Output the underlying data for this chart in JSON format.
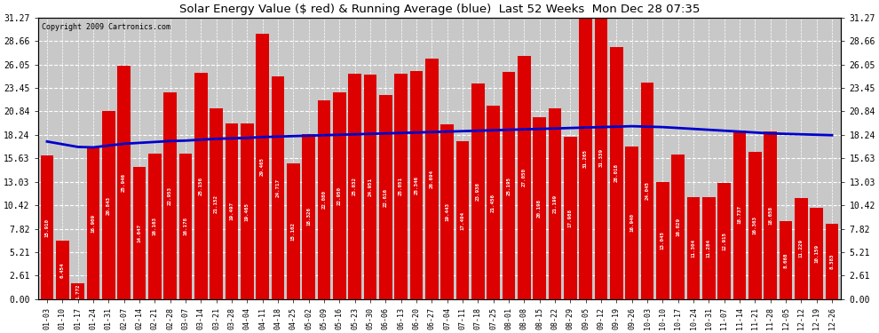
{
  "title": "Solar Energy Value ($ red) & Running Average (blue)  Last 52 Weeks  Mon Dec 28 07:35",
  "copyright": "Copyright 2009 Cartronics.com",
  "bar_color": "#dd0000",
  "line_color": "#0000cc",
  "bg_color": "#ffffff",
  "plot_bg_color": "#c8c8c8",
  "grid_color": "#ffffff",
  "ylim": [
    0,
    31.27
  ],
  "yticks": [
    0.0,
    2.61,
    5.21,
    7.82,
    10.42,
    13.03,
    15.63,
    18.24,
    20.84,
    23.45,
    26.05,
    28.66,
    31.27
  ],
  "categories": [
    "01-03",
    "01-10",
    "01-17",
    "01-24",
    "01-31",
    "02-07",
    "02-14",
    "02-21",
    "02-28",
    "03-07",
    "03-14",
    "03-21",
    "03-28",
    "04-04",
    "04-11",
    "04-18",
    "04-25",
    "05-02",
    "05-09",
    "05-16",
    "05-23",
    "05-30",
    "06-06",
    "06-13",
    "06-20",
    "06-27",
    "07-04",
    "07-11",
    "07-18",
    "07-25",
    "08-01",
    "08-08",
    "08-15",
    "08-22",
    "08-29",
    "09-05",
    "09-12",
    "09-19",
    "09-26",
    "10-03",
    "10-10",
    "10-17",
    "10-24",
    "10-31",
    "11-07",
    "11-14",
    "11-21",
    "11-28",
    "12-05",
    "12-12",
    "12-19",
    "12-26"
  ],
  "values": [
    15.91,
    6.454,
    1.772,
    16.909,
    20.843,
    25.946,
    14.647,
    16.163,
    22.953,
    16.178,
    25.156,
    21.152,
    19.497,
    19.465,
    29.465,
    24.717,
    15.102,
    18.326,
    22.08,
    22.95,
    25.032,
    24.951,
    22.616,
    25.051,
    25.346,
    26.694,
    19.443,
    17.494,
    23.938,
    21.456,
    25.195,
    27.05,
    20.198,
    21.199,
    17.988,
    31.265,
    31.339,
    28.018,
    16.94,
    24.045,
    13.045,
    16.029,
    11.304,
    11.284,
    12.915,
    18.737,
    16.363,
    18.658,
    8.668,
    11.229,
    10.159,
    8.383
  ],
  "running_avg": [
    17.5,
    17.2,
    16.9,
    16.85,
    17.05,
    17.25,
    17.35,
    17.45,
    17.55,
    17.6,
    17.7,
    17.8,
    17.85,
    17.9,
    18.0,
    18.05,
    18.1,
    18.15,
    18.2,
    18.25,
    18.3,
    18.35,
    18.4,
    18.45,
    18.5,
    18.55,
    18.6,
    18.65,
    18.7,
    18.75,
    18.8,
    18.85,
    18.9,
    18.95,
    19.0,
    19.05,
    19.1,
    19.15,
    19.2,
    19.15,
    19.1,
    19.0,
    18.9,
    18.8,
    18.7,
    18.6,
    18.5,
    18.4,
    18.35,
    18.3,
    18.25,
    18.2
  ],
  "value_labels": [
    "15.910",
    "6.454",
    "1.772",
    "16.909",
    "20.843",
    "25.946",
    "14.647",
    "16.163",
    "22.953",
    "16.178",
    "25.156",
    "21.152",
    "19.497",
    "19.465",
    "29.465",
    "24.717",
    "15.102",
    "18.326",
    "22.080",
    "22.950",
    "25.032",
    "24.951",
    "22.616",
    "25.051",
    "25.346",
    "26.694",
    "19.443",
    "17.494",
    "23.938",
    "21.456",
    "25.195",
    "27.050",
    "20.198",
    "21.199",
    "17.988",
    "31.265",
    "31.339",
    "28.018",
    "16.940",
    "24.045",
    "13.045",
    "16.029",
    "11.304",
    "11.284",
    "12.915",
    "18.737",
    "16.363",
    "18.658",
    "8.668",
    "11.229",
    "10.159",
    "8.383"
  ]
}
